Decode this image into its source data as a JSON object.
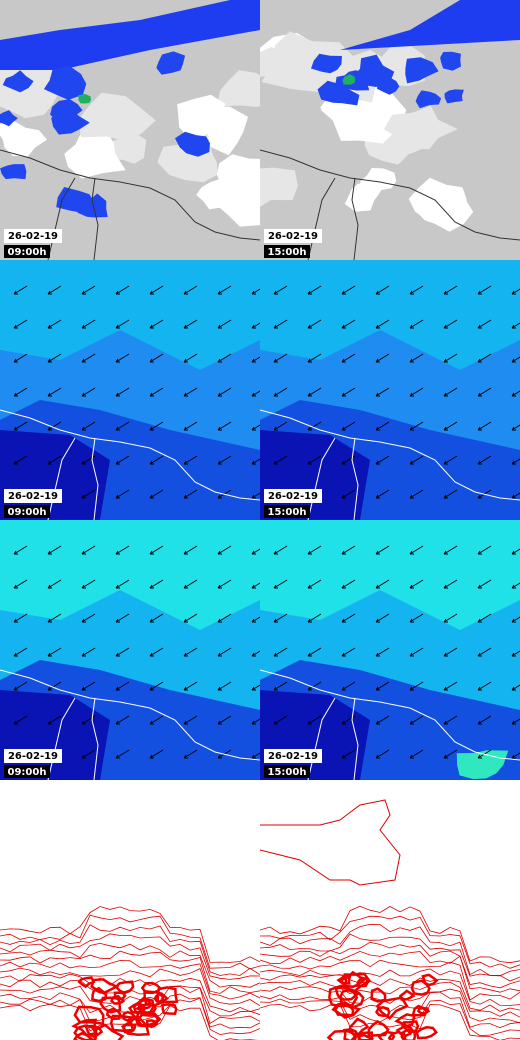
{
  "panels": [
    {
      "date": "26-02-19",
      "time": "09:00h"
    },
    {
      "date": "26-02-19",
      "time": "15:00h"
    },
    {
      "date": "26-02-19",
      "time": "09:00h"
    },
    {
      "date": "26-02-19",
      "time": "15:00h"
    },
    {
      "date": "26-02-19",
      "time": "09:00h"
    },
    {
      "date": "26-02-19",
      "time": "15:00h"
    }
  ]
}
